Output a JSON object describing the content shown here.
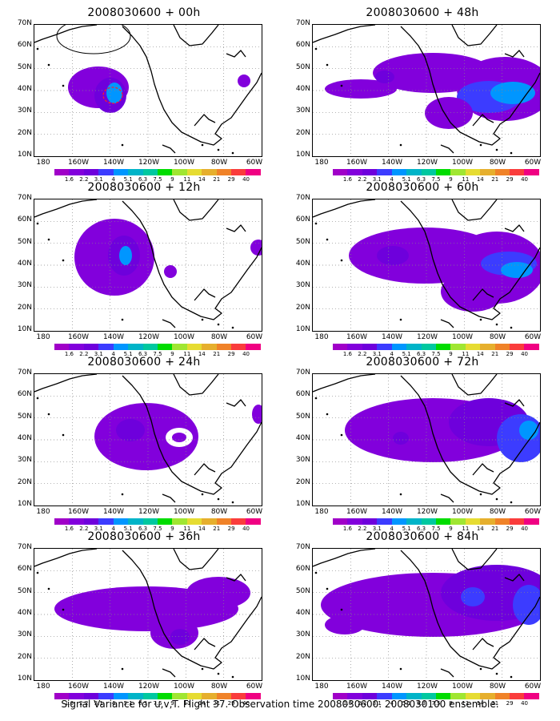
{
  "footer_caption": "Signal Variance for u,v,T. Flight 37. Observation time 2008030600. 2008030100 ensemble.",
  "colorbar": {
    "levels": [
      "1.6",
      "2.2",
      "3.1",
      "4",
      "5.1",
      "6.3",
      "7.5",
      "9",
      "11",
      "14",
      "21",
      "29",
      "40"
    ],
    "colors": [
      "#a000c8",
      "#8200dc",
      "#6e00dc",
      "#3c3cff",
      "#0096ff",
      "#00b4c8",
      "#00c8a0",
      "#00dc00",
      "#a0e632",
      "#e6dc32",
      "#e6af2d",
      "#f08228",
      "#fa3c3c",
      "#f00082"
    ]
  },
  "latitude_labels": [
    "70N",
    "60N",
    "50N",
    "40N",
    "30N",
    "20N",
    "10N"
  ],
  "longitude_labels": [
    "180",
    "160W",
    "140W",
    "120W",
    "100W",
    "80W",
    "60W"
  ],
  "panels": [
    {
      "id": "00h",
      "title": "2008030600 + 00h",
      "has_observation_marker": true
    },
    {
      "id": "48h",
      "title": "2008030600 + 48h",
      "has_observation_marker": false
    },
    {
      "id": "12h",
      "title": "2008030600 + 12h",
      "has_observation_marker": false
    },
    {
      "id": "60h",
      "title": "2008030600 + 60h",
      "has_observation_marker": false
    },
    {
      "id": "24h",
      "title": "2008030600 + 24h",
      "has_observation_marker": false
    },
    {
      "id": "72h",
      "title": "2008030600 + 72h",
      "has_observation_marker": false
    },
    {
      "id": "36h",
      "title": "2008030600 + 36h",
      "has_observation_marker": false
    },
    {
      "id": "84h",
      "title": "2008030600 + 84h",
      "has_observation_marker": false
    }
  ]
}
